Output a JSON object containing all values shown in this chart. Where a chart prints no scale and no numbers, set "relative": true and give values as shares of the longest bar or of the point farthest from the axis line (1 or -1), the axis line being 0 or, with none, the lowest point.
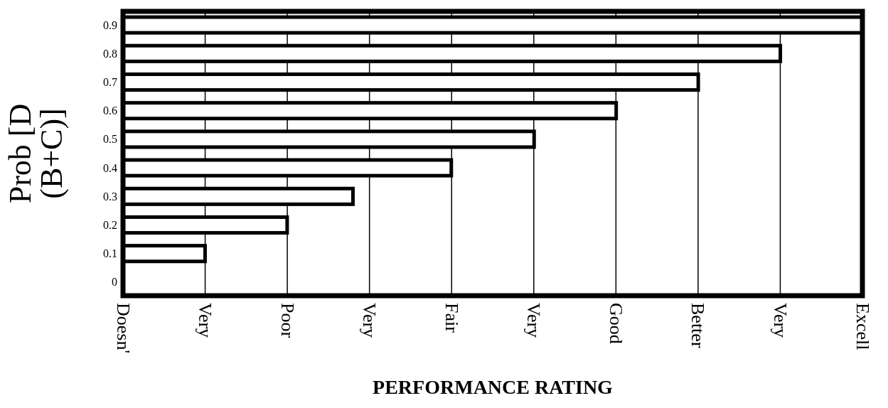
{
  "chart_data": {
    "type": "bar",
    "orientation": "horizontal",
    "relative": true,
    "xlabel": "PERFORMANCE RATING",
    "ylabel": "Prob [D (B+C)]",
    "categories": [
      "0.9",
      "0.8",
      "0.7",
      "0.6",
      "0.5",
      "0.4",
      "0.3",
      "0.2",
      "0.1",
      "0"
    ],
    "values": [
      1,
      0.889,
      0.778,
      0.667,
      0.556,
      0.444,
      0.311,
      0.222,
      0.111,
      null
    ],
    "color": "#ffffff",
    "annotations": [
      "Doesn'",
      "Very",
      "Poor",
      "Very",
      "Fair",
      "Very",
      "Good",
      "Better",
      "Very",
      "Excell"
    ],
    "grid": "x"
  }
}
